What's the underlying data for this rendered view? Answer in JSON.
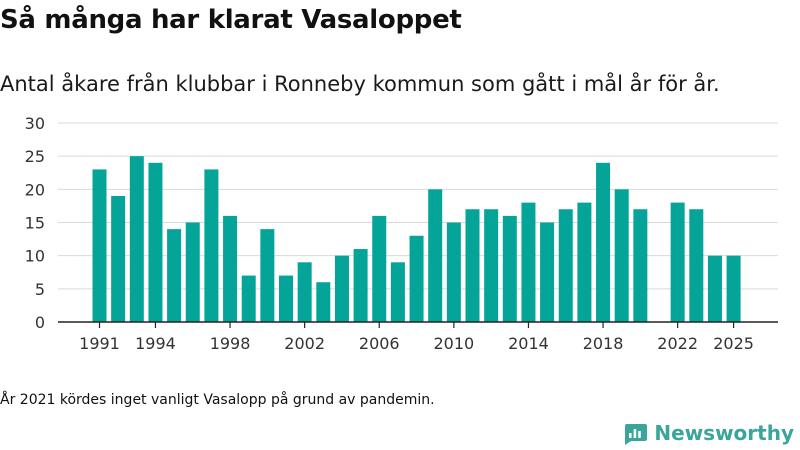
{
  "title": "Så många har klarat Vasaloppet",
  "subtitle": "Antal åkare från klubbar i Ronneby kommun som gått i mål år för år.",
  "note": "År 2021 kördes inget vanligt Vasalopp på grund av pandemin.",
  "brand": {
    "name": "Newsworthy",
    "color": "#3aa59a",
    "icon": "newsworthy-logo"
  },
  "chart_data": {
    "type": "bar",
    "categories": [
      "1991",
      "1992",
      "1993",
      "1994",
      "1995",
      "1996",
      "1997",
      "1998",
      "1999",
      "2000",
      "2001",
      "2002",
      "2003",
      "2004",
      "2005",
      "2006",
      "2007",
      "2008",
      "2009",
      "2010",
      "2011",
      "2012",
      "2013",
      "2014",
      "2015",
      "2016",
      "2017",
      "2018",
      "2019",
      "2020",
      "2021",
      "2022",
      "2023",
      "2024",
      "2025"
    ],
    "values": [
      23,
      19,
      25,
      24,
      14,
      15,
      23,
      16,
      7,
      14,
      7,
      9,
      6,
      10,
      11,
      16,
      9,
      13,
      20,
      15,
      17,
      17,
      16,
      18,
      15,
      17,
      18,
      24,
      20,
      17,
      null,
      18,
      17,
      10,
      10
    ],
    "xticks": [
      "1991",
      "1994",
      "1998",
      "2002",
      "2006",
      "2010",
      "2014",
      "2018",
      "2022",
      "2025"
    ],
    "yticks": [
      0,
      5,
      10,
      15,
      20,
      25,
      30
    ],
    "ylim": [
      0,
      30
    ],
    "bar_color": "#05a498",
    "grid": true
  }
}
